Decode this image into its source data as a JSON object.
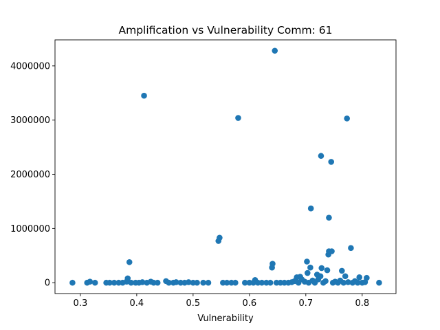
{
  "chart_data": {
    "type": "scatter",
    "title": "Amplification vs Vulnerability Comm: 61",
    "xlabel": "Vulnerability",
    "ylabel": "",
    "xlim": [
      0.255,
      0.86
    ],
    "ylim": [
      -200000,
      4480000
    ],
    "xticks": [
      0.3,
      0.4,
      0.5,
      0.6,
      0.7,
      0.8
    ],
    "xtick_labels": [
      "0.3",
      "0.4",
      "0.5",
      "0.6",
      "0.7",
      "0.8"
    ],
    "yticks": [
      0,
      1000000,
      2000000,
      3000000,
      4000000
    ],
    "ytick_labels": [
      "0",
      "1000000",
      "2000000",
      "3000000",
      "4000000"
    ],
    "grid": false,
    "marker_color": "#1f77b4",
    "series": [
      {
        "points": [
          [
            0.645,
            4280000
          ],
          [
            0.413,
            3450000
          ],
          [
            0.58,
            3040000
          ],
          [
            0.773,
            3030000
          ],
          [
            0.727,
            2340000
          ],
          [
            0.745,
            2230000
          ],
          [
            0.709,
            1370000
          ],
          [
            0.741,
            1200000
          ],
          [
            0.547,
            830000
          ],
          [
            0.545,
            770000
          ],
          [
            0.78,
            640000
          ],
          [
            0.741,
            580000
          ],
          [
            0.746,
            580000
          ],
          [
            0.74,
            520000
          ],
          [
            0.387,
            380000
          ],
          [
            0.702,
            390000
          ],
          [
            0.641,
            350000
          ],
          [
            0.64,
            280000
          ],
          [
            0.708,
            280000
          ],
          [
            0.728,
            270000
          ],
          [
            0.738,
            230000
          ],
          [
            0.764,
            220000
          ],
          [
            0.703,
            180000
          ],
          [
            0.72,
            150000
          ],
          [
            0.684,
            100000
          ],
          [
            0.69,
            110000
          ],
          [
            0.726,
            120000
          ],
          [
            0.77,
            120000
          ],
          [
            0.795,
            100000
          ],
          [
            0.808,
            90000
          ],
          [
            0.384,
            80000
          ],
          [
            0.61,
            50000
          ],
          [
            0.286,
            0
          ],
          [
            0.312,
            0
          ],
          [
            0.317,
            20000
          ],
          [
            0.326,
            0
          ],
          [
            0.346,
            0
          ],
          [
            0.352,
            0
          ],
          [
            0.36,
            0
          ],
          [
            0.368,
            0
          ],
          [
            0.375,
            0
          ],
          [
            0.382,
            20000
          ],
          [
            0.39,
            0
          ],
          [
            0.398,
            0
          ],
          [
            0.404,
            0
          ],
          [
            0.41,
            10000
          ],
          [
            0.418,
            0
          ],
          [
            0.425,
            20000
          ],
          [
            0.43,
            0
          ],
          [
            0.437,
            0
          ],
          [
            0.452,
            30000
          ],
          [
            0.457,
            0
          ],
          [
            0.465,
            0
          ],
          [
            0.47,
            10000
          ],
          [
            0.478,
            0
          ],
          [
            0.485,
            0
          ],
          [
            0.492,
            10000
          ],
          [
            0.5,
            0
          ],
          [
            0.507,
            0
          ],
          [
            0.518,
            0
          ],
          [
            0.527,
            0
          ],
          [
            0.553,
            0
          ],
          [
            0.56,
            0
          ],
          [
            0.568,
            0
          ],
          [
            0.575,
            0
          ],
          [
            0.592,
            0
          ],
          [
            0.6,
            0
          ],
          [
            0.607,
            0
          ],
          [
            0.615,
            0
          ],
          [
            0.622,
            0
          ],
          [
            0.63,
            0
          ],
          [
            0.637,
            0
          ],
          [
            0.648,
            0
          ],
          [
            0.655,
            0
          ],
          [
            0.662,
            0
          ],
          [
            0.669,
            0
          ],
          [
            0.675,
            10000
          ],
          [
            0.68,
            30000
          ],
          [
            0.687,
            0
          ],
          [
            0.693,
            60000
          ],
          [
            0.698,
            20000
          ],
          [
            0.705,
            0
          ],
          [
            0.712,
            40000
          ],
          [
            0.716,
            0
          ],
          [
            0.722,
            60000
          ],
          [
            0.731,
            0
          ],
          [
            0.735,
            30000
          ],
          [
            0.748,
            0
          ],
          [
            0.752,
            20000
          ],
          [
            0.757,
            0
          ],
          [
            0.761,
            40000
          ],
          [
            0.767,
            0
          ],
          [
            0.775,
            10000
          ],
          [
            0.783,
            0
          ],
          [
            0.787,
            30000
          ],
          [
            0.792,
            0
          ],
          [
            0.8,
            0
          ],
          [
            0.805,
            10000
          ],
          [
            0.83,
            0
          ]
        ]
      }
    ]
  }
}
